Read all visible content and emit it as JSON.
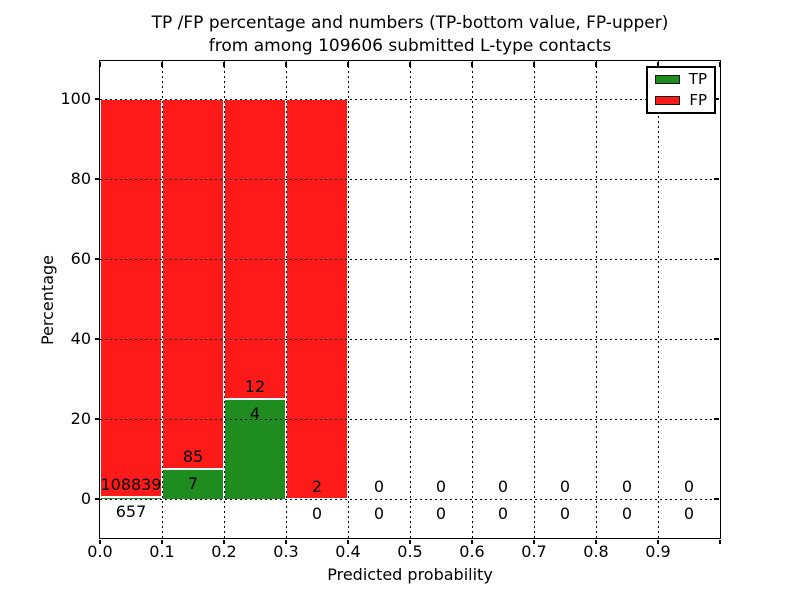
{
  "chart_data": {
    "type": "bar",
    "stacked": true,
    "title_line1": "TP /FP percentage and numbers (TP-bottom value, FP-upper)",
    "title_line2": "from among 109606 submitted L-type contacts",
    "xlabel": "Predicted probability",
    "ylabel": "Percentage",
    "total_submitted": 109606,
    "xlim": [
      0.0,
      1.0
    ],
    "ylim": [
      -10,
      110
    ],
    "x_tick_labels": [
      "0.0",
      "0.1",
      "0.2",
      "0.3",
      "0.4",
      "0.5",
      "0.6",
      "0.7",
      "0.8",
      "0.9"
    ],
    "y_tick_values": [
      0,
      20,
      40,
      60,
      80,
      100
    ],
    "grid_style": "dotted",
    "legend": {
      "position": "upper-right",
      "entries": [
        {
          "label": "TP",
          "color": "#1e8c1e"
        },
        {
          "label": "FP",
          "color": "#ff1a1a"
        }
      ]
    },
    "bins": [
      {
        "x_start": 0.0,
        "x_end": 0.1,
        "tp_count": "657",
        "fp_count": "108839",
        "tp_pct": 0.6,
        "fp_pct": 99.4
      },
      {
        "x_start": 0.1,
        "x_end": 0.2,
        "tp_count": "7",
        "fp_count": "85",
        "tp_pct": 7.6,
        "fp_pct": 92.4
      },
      {
        "x_start": 0.2,
        "x_end": 0.3,
        "tp_count": "4",
        "fp_count": "12",
        "tp_pct": 25.0,
        "fp_pct": 75.0
      },
      {
        "x_start": 0.3,
        "x_end": 0.4,
        "tp_count": "0",
        "fp_count": "2",
        "tp_pct": 0.0,
        "fp_pct": 100.0
      },
      {
        "x_start": 0.4,
        "x_end": 0.5,
        "tp_count": "0",
        "fp_count": "0",
        "tp_pct": 0.0,
        "fp_pct": 0.0
      },
      {
        "x_start": 0.5,
        "x_end": 0.6,
        "tp_count": "0",
        "fp_count": "0",
        "tp_pct": 0.0,
        "fp_pct": 0.0
      },
      {
        "x_start": 0.6,
        "x_end": 0.7,
        "tp_count": "0",
        "fp_count": "0",
        "tp_pct": 0.0,
        "fp_pct": 0.0
      },
      {
        "x_start": 0.7,
        "x_end": 0.8,
        "tp_count": "0",
        "fp_count": "0",
        "tp_pct": 0.0,
        "fp_pct": 0.0
      },
      {
        "x_start": 0.8,
        "x_end": 0.9,
        "tp_count": "0",
        "fp_count": "0",
        "tp_pct": 0.0,
        "fp_pct": 0.0
      },
      {
        "x_start": 0.9,
        "x_end": 1.0,
        "tp_count": "0",
        "fp_count": "0",
        "tp_pct": 0.0,
        "fp_pct": 0.0
      }
    ]
  },
  "colors": {
    "tp_green": "#1e8c1e",
    "fp_red": "#ff1a1a",
    "grid": "#000000",
    "spine": "#000000",
    "bar_edge": "#ffffff",
    "background": "#ffffff",
    "text": "#000000"
  }
}
